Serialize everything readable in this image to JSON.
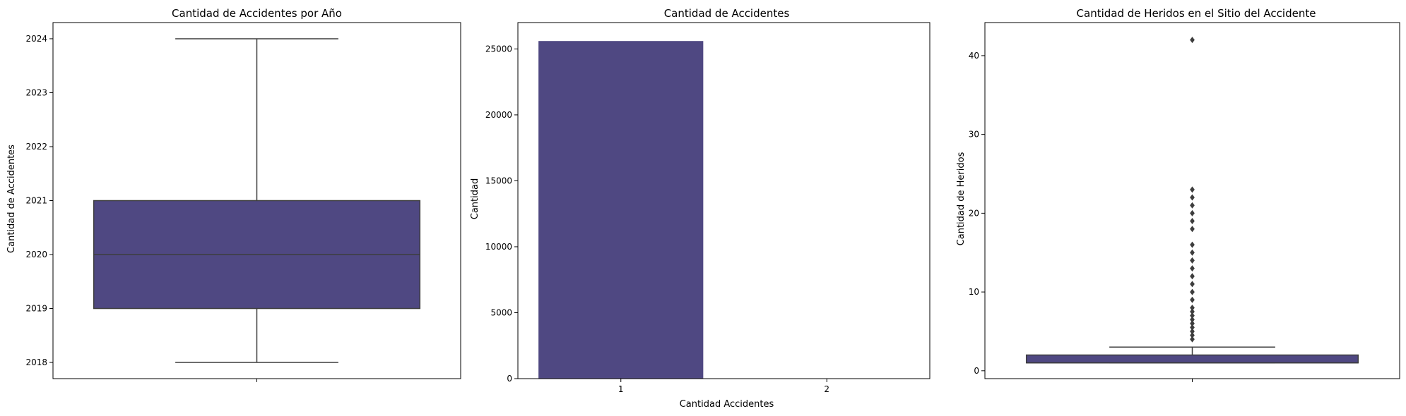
{
  "colors": {
    "fill": "#4f4882",
    "edge": "#3d3d3d",
    "flier": "#3d3d3d"
  },
  "chart_data": [
    {
      "type": "box",
      "title": "Cantidad de Accidentes por Año",
      "xlabel": "",
      "ylabel": "Cantidad de Accidentes",
      "ylim": [
        2017.7,
        2024.3
      ],
      "yticks": [
        2018,
        2019,
        2020,
        2021,
        2022,
        2023,
        2024
      ],
      "box": {
        "whisker_low": 2018,
        "q1": 2019,
        "median": 2020,
        "q3": 2021,
        "whisker_high": 2024
      },
      "fliers": []
    },
    {
      "type": "bar",
      "title": "Cantidad de Accidentes",
      "xlabel": "Cantidad Accidentes",
      "ylabel": "Cantidad",
      "categories": [
        "1",
        "2"
      ],
      "values": [
        25600,
        0
      ],
      "ylim": [
        0,
        27000
      ],
      "yticks": [
        0,
        5000,
        10000,
        15000,
        20000,
        25000
      ]
    },
    {
      "type": "box",
      "title": "Cantidad de Heridos en el Sitio del Accidente",
      "xlabel": "",
      "ylabel": "Cantidad de Heridos",
      "ylim": [
        -1,
        44.2
      ],
      "yticks": [
        0,
        10,
        20,
        30,
        40
      ],
      "box": {
        "whisker_low": 1,
        "q1": 1,
        "median": 1,
        "q3": 2,
        "whisker_high": 3
      },
      "fliers": [
        4,
        4.5,
        5,
        5.5,
        6,
        6.5,
        7,
        7.5,
        8,
        9,
        10,
        11,
        12,
        13,
        14,
        15,
        16,
        18,
        19,
        20,
        21,
        22,
        23,
        42
      ]
    }
  ]
}
